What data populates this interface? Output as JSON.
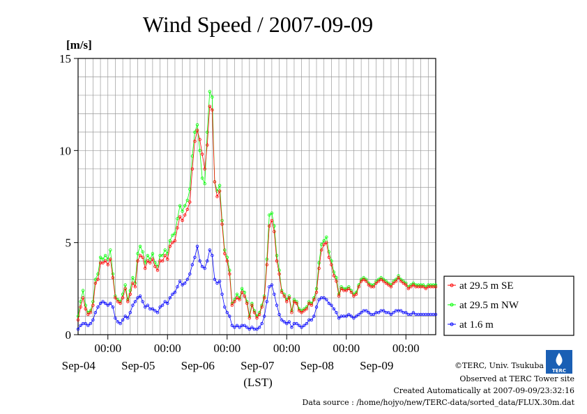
{
  "title": "Wind Speed / 2007-09-09",
  "y_unit": "[m/s]",
  "x_axis_label": "(LST)",
  "footer": {
    "copyright": "©TERC, Univ. Tsukuba",
    "site": "Observed at TERC Tower site",
    "created": "Created Automatically at 2007-09-09/23:32:16",
    "source": "Data source : /home/hojyo/new/TERC-data/sorted_data/FLUX.30m.dat"
  },
  "logo_text": "TERC",
  "chart_data": {
    "type": "line",
    "xlabel": "(LST)",
    "ylabel": "[m/s]",
    "ylim": [
      0,
      15
    ],
    "yticks": [
      0,
      5,
      10,
      15
    ],
    "x_unit": "hours from 2007-09-03 12:00 LST",
    "xlim": [
      0,
      144
    ],
    "midnight_ticks": [
      {
        "x": 12,
        "label": "00:00",
        "day": "Sep-04"
      },
      {
        "x": 36,
        "label": "00:00",
        "day": "Sep-05"
      },
      {
        "x": 60,
        "label": "00:00",
        "day": "Sep-06"
      },
      {
        "x": 84,
        "label": "00:00",
        "day": "Sep-07"
      },
      {
        "x": 108,
        "label": "00:00",
        "day": "Sep-08"
      },
      {
        "x": 132,
        "label": "00:00",
        "day": "Sep-09"
      }
    ],
    "day_labels": [
      {
        "x": 24,
        "label": "Sep-04"
      },
      {
        "x": 48,
        "label": "Sep-05"
      },
      {
        "x": 72,
        "label": "Sep-06"
      },
      {
        "x": 96,
        "label": "Sep-07"
      },
      {
        "x": 120,
        "label": "Sep-08"
      }
    ],
    "day_labels_extra": {
      "x": 144,
      "label": "Sep-09"
    },
    "grid": true,
    "legend": "right",
    "series": [
      {
        "name": "at 29.5 m SE",
        "color": "#ff0000",
        "x": [
          0,
          1,
          2,
          3,
          4,
          5,
          6,
          7,
          8,
          9,
          10,
          11,
          12,
          13,
          14,
          15,
          16,
          17,
          18,
          19,
          20,
          21,
          22,
          23,
          24,
          25,
          26,
          27,
          28,
          29,
          30,
          31,
          32,
          33,
          34,
          35,
          36,
          37,
          38,
          39,
          40,
          41,
          42,
          43,
          44,
          45,
          46,
          47,
          48,
          49,
          50,
          51,
          52,
          53,
          54,
          55,
          56,
          57,
          58,
          59,
          60,
          61,
          62,
          63,
          64,
          65,
          66,
          67,
          68,
          69,
          70,
          71,
          72,
          73,
          74,
          75,
          76,
          77,
          78,
          79,
          80,
          81,
          82,
          83,
          84,
          85,
          86,
          87,
          88,
          89,
          90,
          91,
          92,
          93,
          94,
          95,
          96,
          97,
          98,
          99,
          100,
          101,
          102,
          103,
          104,
          105,
          106,
          107,
          108,
          109,
          110,
          111,
          112,
          113,
          114,
          115,
          116,
          117,
          118,
          119,
          120,
          121,
          122,
          123,
          124,
          125,
          126,
          127,
          128,
          129,
          130,
          131,
          132,
          133,
          134,
          135,
          136,
          137,
          138,
          139,
          140,
          141,
          142,
          143,
          144
        ],
        "values": [
          0.8,
          1.5,
          2.0,
          1.4,
          1.1,
          1.2,
          1.6,
          2.8,
          3.0,
          3.9,
          3.9,
          4.0,
          3.8,
          4.1,
          3.1,
          2.0,
          1.8,
          1.7,
          2.0,
          2.5,
          1.8,
          2.2,
          2.8,
          2.6,
          4.0,
          4.3,
          4.2,
          3.6,
          4.0,
          3.9,
          4.1,
          3.7,
          3.5,
          4.0,
          4.0,
          4.3,
          4.1,
          4.8,
          5.0,
          5.1,
          5.8,
          6.4,
          6.2,
          6.5,
          6.8,
          7.2,
          9.0,
          10.5,
          11.1,
          10.6,
          9.8,
          9.0,
          10.3,
          12.4,
          12.2,
          8.3,
          7.5,
          7.8,
          6.0,
          4.4,
          4.0,
          3.3,
          1.6,
          1.8,
          2.0,
          1.9,
          2.3,
          2.1,
          1.7,
          0.9,
          1.6,
          1.2,
          0.9,
          1.1,
          1.5,
          2.0,
          3.8,
          5.9,
          6.2,
          5.6,
          4.0,
          3.3,
          2.3,
          2.1,
          1.8,
          2.0,
          1.2,
          1.8,
          1.7,
          1.3,
          1.2,
          1.3,
          1.4,
          1.7,
          1.6,
          1.9,
          2.3,
          3.6,
          4.6,
          4.9,
          5.0,
          4.2,
          3.8,
          3.2,
          2.9,
          2.1,
          2.5,
          2.4,
          2.4,
          2.5,
          2.3,
          2.1,
          2.2,
          2.6,
          2.9,
          3.0,
          2.9,
          2.7,
          2.6,
          2.6,
          2.8,
          2.9,
          3.0,
          2.9,
          2.8,
          2.7,
          2.6,
          2.8,
          2.9,
          3.1,
          2.9,
          2.8,
          2.7,
          2.5,
          2.6,
          2.7,
          2.6,
          2.6,
          2.6,
          2.6,
          2.5,
          2.6,
          2.6,
          2.6,
          2.6
        ]
      },
      {
        "name": "at 29.5 m NW",
        "color": "#00ff00",
        "x": [
          0,
          1,
          2,
          3,
          4,
          5,
          6,
          7,
          8,
          9,
          10,
          11,
          12,
          13,
          14,
          15,
          16,
          17,
          18,
          19,
          20,
          21,
          22,
          23,
          24,
          25,
          26,
          27,
          28,
          29,
          30,
          31,
          32,
          33,
          34,
          35,
          36,
          37,
          38,
          39,
          40,
          41,
          42,
          43,
          44,
          45,
          46,
          47,
          48,
          49,
          50,
          51,
          52,
          53,
          54,
          55,
          56,
          57,
          58,
          59,
          60,
          61,
          62,
          63,
          64,
          65,
          66,
          67,
          68,
          69,
          70,
          71,
          72,
          73,
          74,
          75,
          76,
          77,
          78,
          79,
          80,
          81,
          82,
          83,
          84,
          85,
          86,
          87,
          88,
          89,
          90,
          91,
          92,
          93,
          94,
          95,
          96,
          97,
          98,
          99,
          100,
          101,
          102,
          103,
          104,
          105,
          106,
          107,
          108,
          109,
          110,
          111,
          112,
          113,
          114,
          115,
          116,
          117,
          118,
          119,
          120,
          121,
          122,
          123,
          124,
          125,
          126,
          127,
          128,
          129,
          130,
          131,
          132,
          133,
          134,
          135,
          136,
          137,
          138,
          139,
          140,
          141,
          142,
          143,
          144
        ],
        "values": [
          1.0,
          1.8,
          2.4,
          1.6,
          1.2,
          1.3,
          1.8,
          3.0,
          3.3,
          4.2,
          4.1,
          4.3,
          4.1,
          4.6,
          3.3,
          2.1,
          1.9,
          1.8,
          2.2,
          2.7,
          1.9,
          2.4,
          3.1,
          2.8,
          4.4,
          4.8,
          4.5,
          3.9,
          4.3,
          4.1,
          4.4,
          3.9,
          3.7,
          4.3,
          4.3,
          4.6,
          4.4,
          5.1,
          5.4,
          5.5,
          6.3,
          7.0,
          6.7,
          7.0,
          7.3,
          7.9,
          9.7,
          11.0,
          11.4,
          10.0,
          8.5,
          8.2,
          11.0,
          13.2,
          12.9,
          8.3,
          7.8,
          8.1,
          6.2,
          4.6,
          4.2,
          3.5,
          1.7,
          1.9,
          2.2,
          2.0,
          2.5,
          2.3,
          1.8,
          1.0,
          1.7,
          1.3,
          1.0,
          1.2,
          1.6,
          2.1,
          4.1,
          6.5,
          6.6,
          5.9,
          4.3,
          3.5,
          2.4,
          2.2,
          1.9,
          2.1,
          1.3,
          1.9,
          1.8,
          1.4,
          1.3,
          1.4,
          1.5,
          1.8,
          1.7,
          2.0,
          2.5,
          3.9,
          4.9,
          5.1,
          5.3,
          4.5,
          4.0,
          3.4,
          3.1,
          2.2,
          2.6,
          2.5,
          2.5,
          2.6,
          2.4,
          2.2,
          2.3,
          2.7,
          3.0,
          3.1,
          3.0,
          2.8,
          2.7,
          2.7,
          2.9,
          3.0,
          3.1,
          3.0,
          2.9,
          2.8,
          2.7,
          2.9,
          3.0,
          3.2,
          3.0,
          2.9,
          2.8,
          2.6,
          2.7,
          2.8,
          2.7,
          2.7,
          2.7,
          2.7,
          2.6,
          2.7,
          2.7,
          2.7,
          2.7
        ]
      },
      {
        "name": "at 1.6 m",
        "color": "#0000ff",
        "x": [
          0,
          1,
          2,
          3,
          4,
          5,
          6,
          7,
          8,
          9,
          10,
          11,
          12,
          13,
          14,
          15,
          16,
          17,
          18,
          19,
          20,
          21,
          22,
          23,
          24,
          25,
          26,
          27,
          28,
          29,
          30,
          31,
          32,
          33,
          34,
          35,
          36,
          37,
          38,
          39,
          40,
          41,
          42,
          43,
          44,
          45,
          46,
          47,
          48,
          49,
          50,
          51,
          52,
          53,
          54,
          55,
          56,
          57,
          58,
          59,
          60,
          61,
          62,
          63,
          64,
          65,
          66,
          67,
          68,
          69,
          70,
          71,
          72,
          73,
          74,
          75,
          76,
          77,
          78,
          79,
          80,
          81,
          82,
          83,
          84,
          85,
          86,
          87,
          88,
          89,
          90,
          91,
          92,
          93,
          94,
          95,
          96,
          97,
          98,
          99,
          100,
          101,
          102,
          103,
          104,
          105,
          106,
          107,
          108,
          109,
          110,
          111,
          112,
          113,
          114,
          115,
          116,
          117,
          118,
          119,
          120,
          121,
          122,
          123,
          124,
          125,
          126,
          127,
          128,
          129,
          130,
          131,
          132,
          133,
          134,
          135,
          136,
          137,
          138,
          139,
          140,
          141,
          142,
          143,
          144
        ],
        "values": [
          0.3,
          0.5,
          0.6,
          0.6,
          0.5,
          0.6,
          0.8,
          1.2,
          1.5,
          1.7,
          1.8,
          1.7,
          1.6,
          1.7,
          1.5,
          0.9,
          0.7,
          0.6,
          0.8,
          1.0,
          0.9,
          1.2,
          1.6,
          1.8,
          2.0,
          2.1,
          1.8,
          1.5,
          1.6,
          1.4,
          1.4,
          1.3,
          1.2,
          1.5,
          1.6,
          1.8,
          1.7,
          2.0,
          2.2,
          2.3,
          2.6,
          2.9,
          2.7,
          2.8,
          3.0,
          3.3,
          3.8,
          4.2,
          4.8,
          4.0,
          3.7,
          3.6,
          4.0,
          4.6,
          4.3,
          3.0,
          2.8,
          2.9,
          2.2,
          1.5,
          1.2,
          1.0,
          0.5,
          0.4,
          0.5,
          0.4,
          0.5,
          0.5,
          0.4,
          0.3,
          0.4,
          0.3,
          0.3,
          0.4,
          0.6,
          1.0,
          1.8,
          2.6,
          2.7,
          2.2,
          1.6,
          1.1,
          0.8,
          0.7,
          0.6,
          0.7,
          0.4,
          0.6,
          0.6,
          0.5,
          0.4,
          0.5,
          0.6,
          0.8,
          0.8,
          1.0,
          1.5,
          1.9,
          2.0,
          2.0,
          1.9,
          1.7,
          1.6,
          1.4,
          1.2,
          0.9,
          1.0,
          1.0,
          1.0,
          1.1,
          1.0,
          0.9,
          1.0,
          1.1,
          1.2,
          1.3,
          1.3,
          1.2,
          1.1,
          1.1,
          1.2,
          1.2,
          1.3,
          1.3,
          1.2,
          1.2,
          1.1,
          1.2,
          1.3,
          1.3,
          1.3,
          1.2,
          1.2,
          1.1,
          1.1,
          1.2,
          1.1,
          1.1,
          1.1,
          1.1,
          1.1,
          1.1,
          1.1,
          1.1,
          1.1
        ]
      }
    ]
  }
}
